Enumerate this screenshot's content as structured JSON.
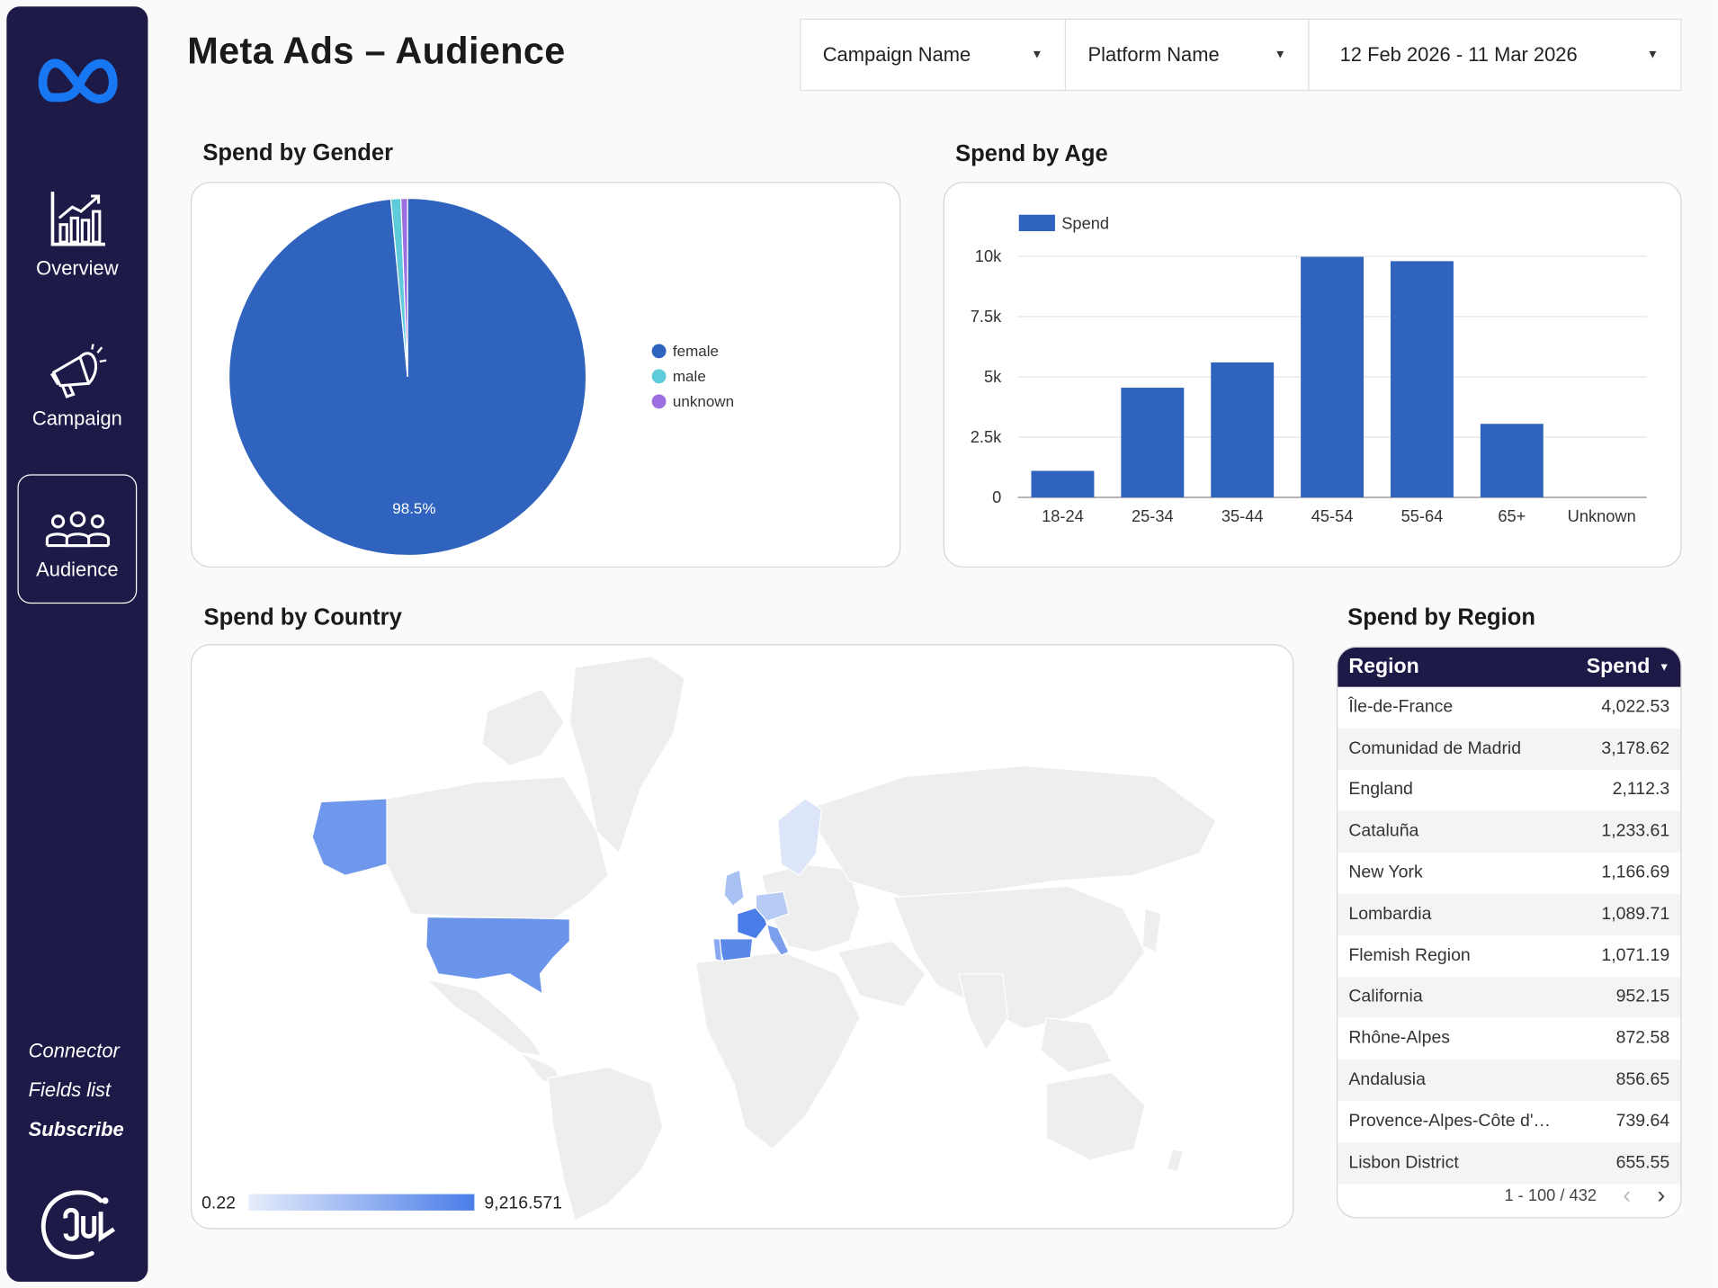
{
  "sidebar": {
    "nav": [
      {
        "label": "Overview",
        "icon": "chart-growth-icon"
      },
      {
        "label": "Campaign",
        "icon": "megaphone-icon"
      },
      {
        "label": "Audience",
        "icon": "people-icon",
        "active": true
      }
    ],
    "links": [
      "Connector",
      "Fields list",
      "Subscribe"
    ]
  },
  "header": {
    "title": "Meta Ads –  Audience",
    "filters": [
      "Campaign Name",
      "Platform Name",
      "12 Feb 2026 - 11 Mar 2026"
    ]
  },
  "gender": {
    "title": "Spend by Gender",
    "slice_label": "98.5%",
    "legend": [
      "female",
      "male",
      "unknown"
    ]
  },
  "age": {
    "title": "Spend by Age",
    "legend": "Spend"
  },
  "country": {
    "title": "Spend by Country",
    "scale_min": "0.22",
    "scale_max": "9,216.571"
  },
  "region": {
    "title": "Spend by Region",
    "col_region": "Region",
    "col_spend": "Spend",
    "rows": [
      {
        "name": "Île-de-France",
        "spend": "4,022.53"
      },
      {
        "name": "Comunidad de Madrid",
        "spend": "3,178.62"
      },
      {
        "name": "England",
        "spend": "2,112.3"
      },
      {
        "name": "Cataluña",
        "spend": "1,233.61"
      },
      {
        "name": "New York",
        "spend": "1,166.69"
      },
      {
        "name": "Lombardia",
        "spend": "1,089.71"
      },
      {
        "name": "Flemish Region",
        "spend": "1,071.19"
      },
      {
        "name": "California",
        "spend": "952.15"
      },
      {
        "name": "Rhône-Alpes",
        "spend": "872.58"
      },
      {
        "name": "Andalusia",
        "spend": "856.65"
      },
      {
        "name": "Provence-Alpes-Côte d'…",
        "spend": "739.64"
      },
      {
        "name": "Lisbon District",
        "spend": "655.55"
      }
    ],
    "pagination": "1 - 100 / 432"
  },
  "colors": {
    "sidebar": "#1e1a47",
    "primary_blue": "#2f63bd",
    "male": "#5ecbdb",
    "unknown": "#9b6fe0",
    "map_high": "#4a7de8",
    "map_low": "#e6ecfb"
  },
  "chart_data": [
    {
      "type": "pie",
      "title": "Spend by Gender",
      "categories": [
        "female",
        "male",
        "unknown"
      ],
      "values": [
        98.5,
        0.9,
        0.6
      ],
      "unit": "%"
    },
    {
      "type": "bar",
      "title": "Spend by Age",
      "categories": [
        "18-24",
        "25-34",
        "35-44",
        "45-54",
        "55-64",
        "65+",
        "Unknown"
      ],
      "series": [
        {
          "name": "Spend",
          "values": [
            1100,
            4550,
            5600,
            9980,
            9800,
            3050,
            0
          ]
        }
      ],
      "ylim": [
        0,
        10000
      ],
      "yticks": [
        0,
        2500,
        5000,
        7500,
        10000
      ],
      "ytick_labels": [
        "0",
        "2.5k",
        "5k",
        "7.5k",
        "10k"
      ],
      "legend": "top-left",
      "grid": true
    }
  ]
}
